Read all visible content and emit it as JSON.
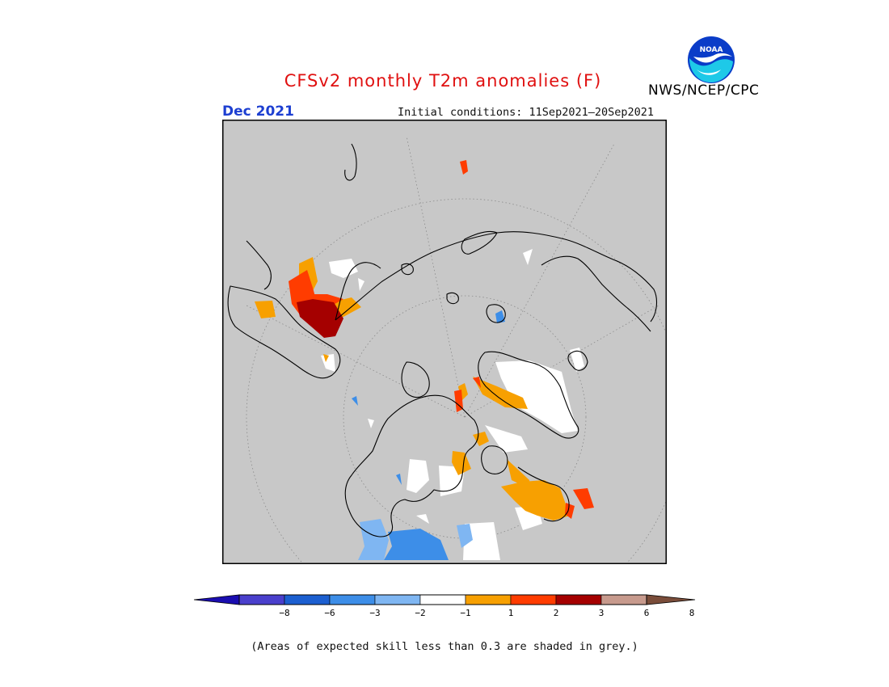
{
  "header": {
    "title": "CFSv2 monthly T2m anomalies (F)",
    "month": "Dec 2021",
    "initial_conditions": "Initial conditions: 11Sep2021—20Sep2021",
    "agency": "NWS/NCEP/CPC",
    "logo_text": "NOAA"
  },
  "map": {
    "projection": "north-polar-stereographic",
    "background_color": "#c8c8c8"
  },
  "colorbar": {
    "bins": [
      {
        "color": "#1a0db0"
      },
      {
        "color": "#4a3fcc"
      },
      {
        "color": "#1c5fd0"
      },
      {
        "color": "#3d8ee8"
      },
      {
        "color": "#7fb6f2"
      },
      {
        "color": "#ffffff"
      },
      {
        "color": "#f7a001"
      },
      {
        "color": "#ff3c00"
      },
      {
        "color": "#a50000"
      },
      {
        "color": "#c79a8d"
      },
      {
        "color": "#7a4d3a"
      }
    ],
    "tick_labels": [
      "−8",
      "−6",
      "−3",
      "−2",
      "−1",
      "1",
      "2",
      "3",
      "6",
      "8"
    ]
  },
  "footnote": "(Areas of expected skill less than 0.3 are shaded in grey.)"
}
